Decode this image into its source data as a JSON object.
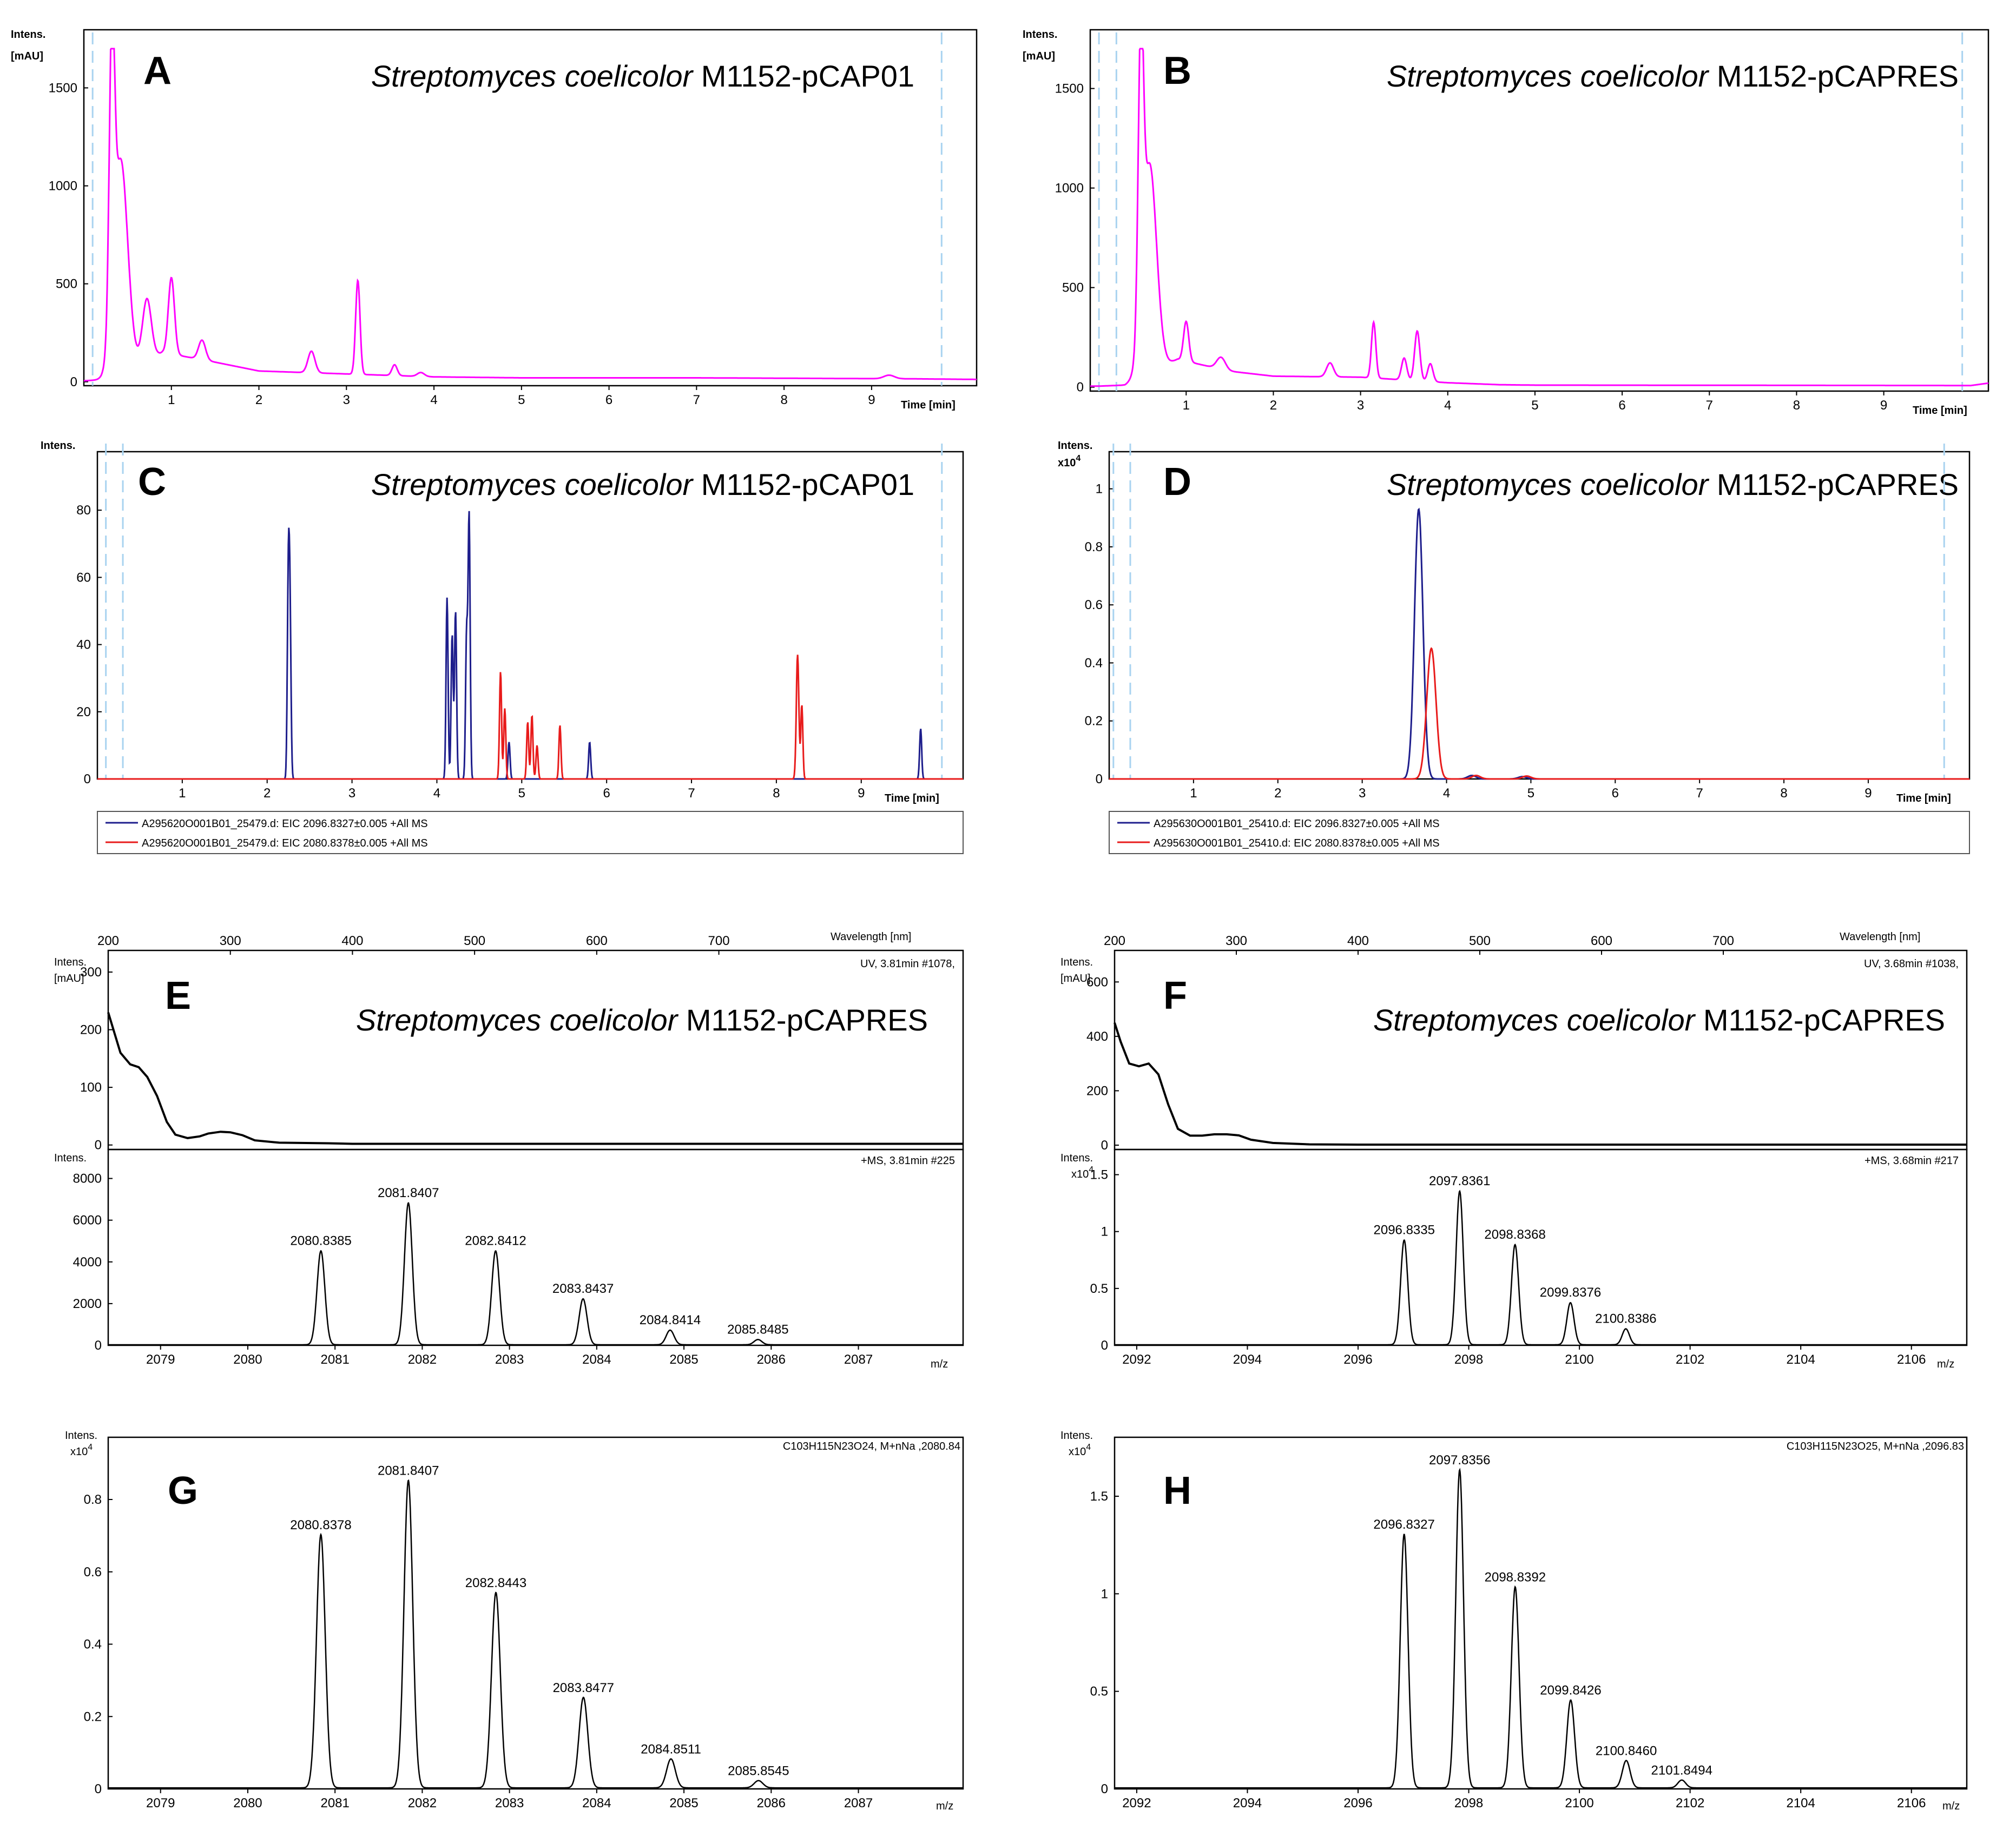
{
  "colors": {
    "uv": "#ff00ff",
    "blue_trace": "#1e1e8c",
    "red_trace": "#e81b1b",
    "black_trace": "#000000",
    "marker": "#a9d3f0"
  },
  "common": {
    "organism_italic": "Streptomyces coelicolor",
    "time_label": "Time [min]",
    "intens": "Intens.",
    "mau": "[mAU]",
    "x10_4": "x10",
    "exp4": "4",
    "mz": "m/z",
    "wavelength_label": "Wavelength [nm]"
  },
  "panels": [
    {
      "id": "A",
      "strain": "M1152-pCAP01"
    },
    {
      "id": "B",
      "strain": "M1152-pCAPRES"
    },
    {
      "id": "C",
      "strain": "M1152-pCAP01"
    },
    {
      "id": "D",
      "strain": "M1152-pCAPRES"
    },
    {
      "id": "E",
      "strain": "M1152-pCAPRES"
    },
    {
      "id": "F",
      "strain": "M1152-pCAPRES"
    },
    {
      "id": "G"
    },
    {
      "id": "H"
    }
  ],
  "legends": {
    "C": [
      "A295620O001B01_25479.d: EIC 2096.8327±0.005 +All MS",
      "A295620O001B01_25479.d: EIC 2080.8378±0.005 +All MS"
    ],
    "D": [
      "A295630O001B01_25410.d: EIC 2096.8327±0.005 +All MS",
      "A295630O001B01_25410.d: EIC 2080.8378±0.005 +All MS"
    ]
  },
  "annotations": {
    "E_uv": "UV, 3.81min #1078,",
    "E_ms": "+MS, 3.81min #225",
    "F_uv": "UV, 3.68min #1038,",
    "F_ms": "+MS, 3.68min #217",
    "G_formula": "C103H115N23O24, M+nNa ,2080.84",
    "H_formula": "C103H115N23O25, M+nNa ,2096.83"
  },
  "chart_data": [
    {
      "id": "A",
      "type": "line",
      "title": "Streptomyces coelicolor M1152-pCAP01",
      "xlabel": "Time [min]",
      "ylabel": "Intens. [mAU]",
      "xlim": [
        0,
        10.2
      ],
      "ylim": [
        -20,
        1700
      ],
      "xticks": [
        1,
        2,
        3,
        4,
        5,
        6,
        7,
        8,
        9
      ],
      "yticks": [
        0,
        500,
        1000,
        1500
      ],
      "markers": [
        0.1,
        9.8
      ],
      "series": [
        {
          "name": "UV",
          "color": "#ff00ff",
          "baseline": [
            [
              0,
              5
            ],
            [
              0.2,
              10
            ],
            [
              0.9,
              150
            ],
            [
              1.5,
              100
            ],
            [
              2,
              55
            ],
            [
              3,
              40
            ],
            [
              4,
              25
            ],
            [
              5,
              20
            ],
            [
              7,
              20
            ],
            [
              9.5,
              15
            ],
            [
              10.2,
              12
            ]
          ],
          "peaks": [
            [
              0.32,
              1420,
              0.03
            ],
            [
              0.42,
              1080,
              0.08
            ],
            [
              0.72,
              310,
              0.05
            ],
            [
              1.0,
              390,
              0.035
            ],
            [
              1.35,
              100,
              0.04
            ],
            [
              2.6,
              110,
              0.04
            ],
            [
              3.13,
              480,
              0.025
            ],
            [
              3.55,
              55,
              0.03
            ],
            [
              3.85,
              20,
              0.04
            ],
            [
              9.2,
              18,
              0.06
            ]
          ]
        }
      ]
    },
    {
      "id": "B",
      "type": "line",
      "title": "Streptomyces coelicolor M1152-pCAPRES",
      "xlabel": "Time [min]",
      "ylabel": "Intens. [mAU]",
      "xlim": [
        -0.1,
        10.2
      ],
      "ylim": [
        -20,
        1700
      ],
      "xticks": [
        1,
        2,
        3,
        4,
        5,
        6,
        7,
        8,
        9
      ],
      "yticks": [
        0,
        500,
        1000,
        1500
      ],
      "markers": [
        0.0,
        0.2,
        9.9
      ],
      "series": [
        {
          "name": "UV",
          "color": "#ff00ff",
          "baseline": [
            [
              0,
              5
            ],
            [
              0.3,
              10
            ],
            [
              0.9,
              140
            ],
            [
              1.5,
              80
            ],
            [
              2,
              55
            ],
            [
              3,
              50
            ],
            [
              4,
              22
            ],
            [
              4.6,
              12
            ],
            [
              5,
              10
            ],
            [
              10,
              8
            ],
            [
              10.2,
              20
            ]
          ],
          "peaks": [
            [
              0.48,
              1400,
              0.03
            ],
            [
              0.58,
              1050,
              0.08
            ],
            [
              1.0,
              200,
              0.03
            ],
            [
              1.4,
              60,
              0.05
            ],
            [
              2.65,
              70,
              0.04
            ],
            [
              3.15,
              280,
              0.025
            ],
            [
              3.5,
              110,
              0.03
            ],
            [
              3.65,
              250,
              0.03
            ],
            [
              3.8,
              90,
              0.03
            ]
          ]
        }
      ]
    },
    {
      "id": "C",
      "type": "line",
      "title": "Streptomyces coelicolor M1152-pCAP01",
      "xlabel": "Time [min]",
      "ylabel": "Intens.",
      "xlim": [
        0,
        10.2
      ],
      "ylim": [
        0,
        95
      ],
      "xticks": [
        1,
        2,
        3,
        4,
        5,
        6,
        7,
        8,
        9
      ],
      "yticks": [
        0,
        20,
        40,
        60,
        80
      ],
      "markers": [
        0.1,
        0.3,
        9.95
      ],
      "series": [
        {
          "name": "EIC 2096.8327",
          "color": "#1e1e8c",
          "peaks": [
            [
              2.25,
              59,
              0.012
            ],
            [
              2.27,
              45,
              0.012
            ],
            [
              4.12,
              54,
              0.012
            ],
            [
              4.22,
              50,
              0.012
            ],
            [
              4.18,
              43,
              0.012
            ],
            [
              4.35,
              43,
              0.012
            ],
            [
              4.38,
              78,
              0.012
            ],
            [
              4.85,
              11,
              0.012
            ],
            [
              5.8,
              11,
              0.012
            ],
            [
              9.7,
              15,
              0.012
            ]
          ]
        },
        {
          "name": "EIC 2080.8378",
          "color": "#e81b1b",
          "peaks": [
            [
              4.75,
              32,
              0.012
            ],
            [
              4.8,
              21,
              0.012
            ],
            [
              5.07,
              17,
              0.012
            ],
            [
              5.12,
              19,
              0.012
            ],
            [
              5.18,
              10,
              0.012
            ],
            [
              5.45,
              16,
              0.012
            ],
            [
              8.25,
              37,
              0.015
            ],
            [
              8.3,
              22,
              0.012
            ]
          ]
        }
      ]
    },
    {
      "id": "D",
      "type": "line",
      "title": "Streptomyces coelicolor M1152-pCAPRES",
      "xlabel": "Time [min]",
      "ylabel": "Intens. x10^4",
      "xlim": [
        0,
        10.2
      ],
      "ylim": [
        0,
        1.1
      ],
      "xticks": [
        1,
        2,
        3,
        4,
        5,
        6,
        7,
        8,
        9
      ],
      "yticks": [
        0.0,
        0.2,
        0.4,
        0.6,
        0.8,
        1.0
      ],
      "markers": [
        0.05,
        0.25,
        9.9
      ],
      "series": [
        {
          "name": "EIC 2096.8327",
          "color": "#1e1e8c",
          "peaks": [
            [
              3.67,
              0.93,
              0.05
            ],
            [
              4.3,
              0.012,
              0.05
            ],
            [
              4.9,
              0.008,
              0.05
            ]
          ]
        },
        {
          "name": "EIC 2080.8378",
          "color": "#e81b1b",
          "peaks": [
            [
              3.82,
              0.45,
              0.055
            ],
            [
              4.35,
              0.012,
              0.05
            ],
            [
              4.95,
              0.01,
              0.05
            ]
          ]
        }
      ]
    },
    {
      "id": "E_uv",
      "type": "line",
      "xlabel": "Wavelength [nm]",
      "ylabel": "Intens. [mAU]",
      "xlim": [
        200,
        900
      ],
      "ylim": [
        -5,
        330
      ],
      "xticks": [
        200,
        300,
        400,
        500,
        600,
        700
      ],
      "yticks": [
        0,
        100,
        200,
        300
      ],
      "series": [
        {
          "name": "UV spectrum",
          "color": "#000000",
          "points": [
            [
              200,
              230
            ],
            [
              205,
              195
            ],
            [
              210,
              160
            ],
            [
              218,
              140
            ],
            [
              225,
              135
            ],
            [
              232,
              118
            ],
            [
              240,
              85
            ],
            [
              248,
              40
            ],
            [
              255,
              18
            ],
            [
              265,
              12
            ],
            [
              275,
              15
            ],
            [
              282,
              20
            ],
            [
              292,
              23
            ],
            [
              300,
              22
            ],
            [
              310,
              17
            ],
            [
              320,
              8
            ],
            [
              340,
              4
            ],
            [
              380,
              3
            ],
            [
              400,
              2
            ],
            [
              900,
              2
            ]
          ]
        }
      ]
    },
    {
      "id": "E_ms",
      "type": "bar",
      "xlabel": "m/z",
      "ylabel": "Intens.",
      "xlim": [
        2078.4,
        2088.2
      ],
      "ylim": [
        0,
        9000
      ],
      "xticks": [
        2079,
        2080,
        2081,
        2082,
        2083,
        2084,
        2085,
        2086,
        2087
      ],
      "yticks": [
        0,
        2000,
        4000,
        6000,
        8000
      ],
      "x": [
        2080.8385,
        2081.8407,
        2082.8412,
        2083.8437,
        2084.8414,
        2085.8485
      ],
      "values": [
        4500,
        6800,
        4500,
        2200,
        700,
        250
      ],
      "labels": [
        "2080.8385",
        "2081.8407",
        "2082.8412",
        "2083.8437",
        "2084.8414",
        "2085.8485"
      ]
    },
    {
      "id": "F_uv",
      "type": "line",
      "xlabel": "Wavelength [nm]",
      "ylabel": "Intens. [mAU]",
      "xlim": [
        200,
        900
      ],
      "ylim": [
        -10,
        700
      ],
      "xticks": [
        200,
        300,
        400,
        500,
        600,
        700
      ],
      "yticks": [
        0,
        200,
        400,
        600
      ],
      "series": [
        {
          "name": "UV spectrum",
          "color": "#000000",
          "points": [
            [
              200,
              450
            ],
            [
              205,
              380
            ],
            [
              212,
              300
            ],
            [
              220,
              290
            ],
            [
              228,
              300
            ],
            [
              236,
              260
            ],
            [
              244,
              150
            ],
            [
              252,
              60
            ],
            [
              262,
              35
            ],
            [
              272,
              35
            ],
            [
              282,
              40
            ],
            [
              292,
              40
            ],
            [
              302,
              36
            ],
            [
              312,
              20
            ],
            [
              330,
              8
            ],
            [
              360,
              3
            ],
            [
              400,
              2
            ],
            [
              900,
              2
            ]
          ]
        }
      ]
    },
    {
      "id": "F_ms",
      "type": "bar",
      "xlabel": "m/z",
      "ylabel": "Intens. x10^4",
      "xlim": [
        2091.6,
        2107.0
      ],
      "ylim": [
        0,
        1.65
      ],
      "xticks": [
        2092,
        2094,
        2096,
        2098,
        2100,
        2102,
        2104,
        2106
      ],
      "yticks": [
        0.0,
        0.5,
        1.0,
        1.5
      ],
      "x": [
        2096.8335,
        2097.8361,
        2098.8368,
        2099.8376,
        2100.8386
      ],
      "values": [
        0.92,
        1.35,
        0.88,
        0.37,
        0.14
      ],
      "labels": [
        "2096.8335",
        "2097.8361",
        "2098.8368",
        "2099.8376",
        "2100.8386"
      ]
    },
    {
      "id": "G",
      "type": "bar",
      "xlabel": "m/z",
      "ylabel": "Intens. x10^4",
      "xlim": [
        2078.4,
        2088.2
      ],
      "ylim": [
        0,
        0.96
      ],
      "xticks": [
        2079,
        2080,
        2081,
        2082,
        2083,
        2084,
        2085,
        2086,
        2087
      ],
      "yticks": [
        0.0,
        0.2,
        0.4,
        0.6,
        0.8
      ],
      "x": [
        2080.8378,
        2081.8407,
        2082.8443,
        2083.8477,
        2084.8511,
        2085.8545
      ],
      "values": [
        0.7,
        0.85,
        0.54,
        0.25,
        0.08,
        0.02
      ],
      "labels": [
        "2080.8378",
        "2081.8407",
        "2082.8443",
        "2083.8477",
        "2084.8511",
        "2085.8545"
      ]
    },
    {
      "id": "H",
      "type": "bar",
      "xlabel": "m/z",
      "ylabel": "Intens. x10^4",
      "xlim": [
        2091.6,
        2107.0
      ],
      "ylim": [
        0,
        1.78
      ],
      "xticks": [
        2092,
        2094,
        2096,
        2098,
        2100,
        2102,
        2104,
        2106
      ],
      "yticks": [
        0.0,
        0.5,
        1.0,
        1.5
      ],
      "x": [
        2096.8327,
        2097.8356,
        2098.8392,
        2099.8426,
        2100.846,
        2101.8494
      ],
      "values": [
        1.3,
        1.63,
        1.03,
        0.45,
        0.14,
        0.04
      ],
      "labels": [
        "2096.8327",
        "2097.8356",
        "2098.8392",
        "2099.8426",
        "2100.8460",
        "2101.8494"
      ]
    }
  ]
}
